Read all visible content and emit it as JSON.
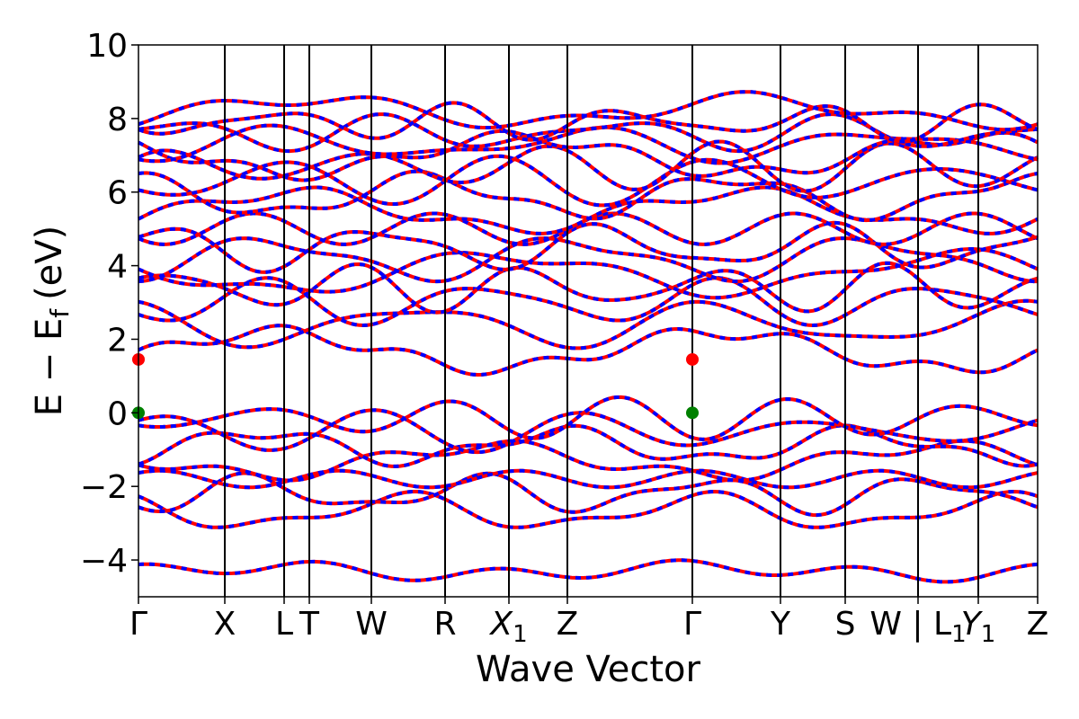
{
  "chart_data": {
    "type": "line",
    "xlabel": "Wave Vector",
    "ylabel": "E − E_f (eV)",
    "ylabel_parts": {
      "main": "E − E",
      "sub": "f",
      "unit": "(eV)"
    },
    "ylim": [
      -5,
      10
    ],
    "yticks": [
      -4,
      -2,
      0,
      2,
      4,
      6,
      8,
      10
    ],
    "ytick_labels": [
      "−4",
      "−2",
      "0",
      "2",
      "4",
      "6",
      "8",
      "10"
    ],
    "kpath": [
      {
        "label": "Γ",
        "x": 0.0
      },
      {
        "label": "X",
        "x": 0.096
      },
      {
        "label": "L",
        "x": 0.162
      },
      {
        "label": "T",
        "x": 0.19
      },
      {
        "label": "W",
        "x": 0.259
      },
      {
        "label": "R",
        "x": 0.341
      },
      {
        "label": "X",
        "sub": "1",
        "x": 0.412
      },
      {
        "label": "Z",
        "x": 0.477
      },
      {
        "label": "Γ",
        "x": 0.616
      },
      {
        "label": "Y",
        "x": 0.714
      },
      {
        "label": "S",
        "x": 0.786
      },
      {
        "label": "W | L",
        "sub": "1",
        "x": 0.867
      },
      {
        "label": "Y",
        "sub": "1",
        "x": 0.934
      },
      {
        "label": "Z",
        "x": 1.0
      }
    ],
    "grid": false,
    "series": [
      {
        "color": "#ff0000",
        "style": "solid",
        "width": 4
      },
      {
        "color": "#0000ff",
        "style": "dashed",
        "width": 4
      }
    ],
    "bands_note": "",
    "highlight_points": [
      {
        "x": 0.0,
        "y": 1.45,
        "color": "#ff0000"
      },
      {
        "x": 0.616,
        "y": 1.45,
        "color": "#ff0000"
      },
      {
        "x": 0.0,
        "y": 0.0,
        "color": "#008000"
      },
      {
        "x": 0.616,
        "y": 0.0,
        "color": "#008000"
      }
    ]
  }
}
